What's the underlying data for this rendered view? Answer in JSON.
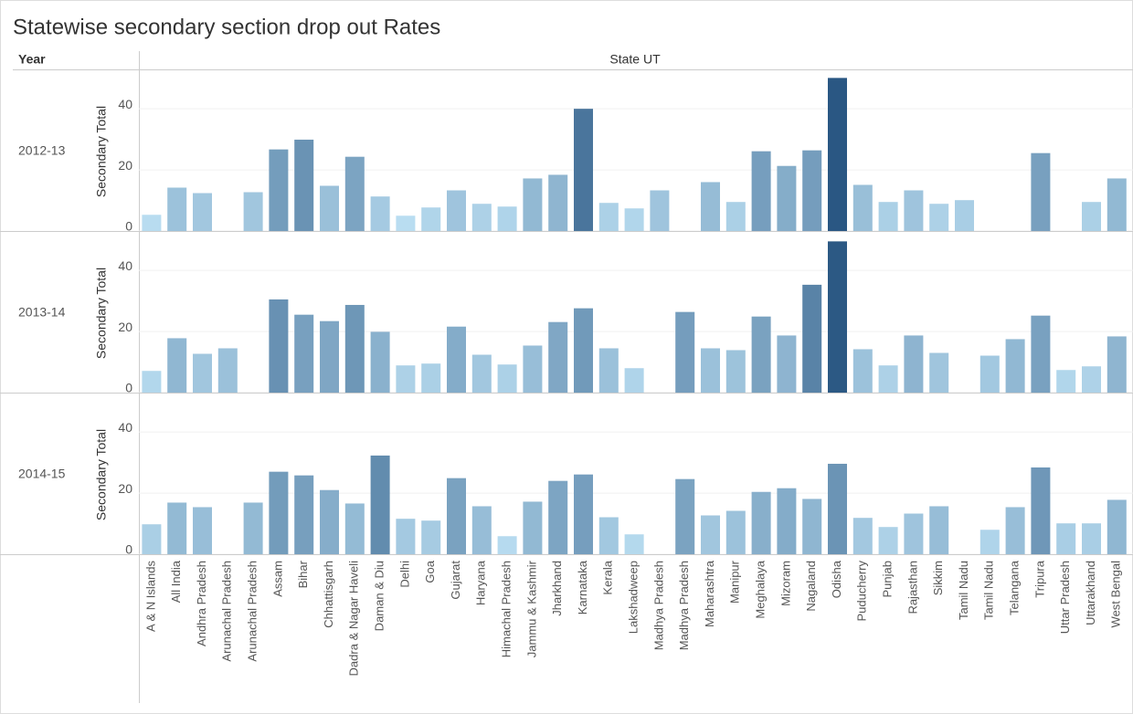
{
  "title": "Statewise secondary section drop out Rates",
  "row_header": "Year",
  "column_header": "State UT",
  "chart_data": {
    "type": "bar",
    "y_label": "Secondary Total",
    "categories": [
      "A & N Islands",
      "All India",
      "Andhra Pradesh",
      "Arunachal  Pradesh",
      "Arunachal Pradesh",
      "Assam",
      "Bihar",
      "Chhattisgarh",
      "Dadra & Nagar Haveli",
      "Daman & Diu",
      "Delhi",
      "Goa",
      "Gujarat",
      "Haryana",
      "Himachal Pradesh",
      "Jammu & Kashmir",
      "Jharkhand",
      "Karnataka",
      "Kerala",
      "Lakshadweep",
      "Madhya  Pradesh",
      "Madhya Pradesh",
      "Maharashtra",
      "Manipur",
      "Meghalaya",
      "Mizoram",
      "Nagaland",
      "Odisha",
      "Puducherry",
      "Punjab",
      "Rajasthan",
      "Sikkim",
      "Tamil  Nadu",
      "Tamil Nadu",
      "Telangana",
      "Tripura",
      "Uttar Pradesh",
      "Uttarakhand",
      "West Bengal"
    ],
    "rows": [
      {
        "name": "2012-13",
        "values": [
          5.3,
          14.2,
          12.4,
          null,
          12.7,
          26.7,
          29.9,
          14.8,
          24.3,
          11.3,
          5.0,
          7.7,
          13.3,
          8.9,
          8.0,
          17.2,
          18.4,
          40.0,
          9.2,
          7.4,
          13.3,
          null,
          16.0,
          9.5,
          26.1,
          21.3,
          26.4,
          50.1,
          15.1,
          9.5,
          13.3,
          8.9,
          10.1,
          null,
          null,
          25.5,
          null,
          9.5,
          17.2
        ]
      },
      {
        "name": "2013-14",
        "values": [
          7.1,
          17.8,
          12.7,
          14.5,
          null,
          30.5,
          25.5,
          23.4,
          28.7,
          19.9,
          8.9,
          9.5,
          21.6,
          12.4,
          9.2,
          15.4,
          23.1,
          27.6,
          14.5,
          8.0,
          null,
          26.4,
          14.5,
          13.9,
          24.9,
          18.7,
          35.3,
          49.5,
          14.2,
          8.9,
          18.7,
          13.0,
          null,
          12.1,
          17.5,
          25.2,
          7.4,
          8.6,
          18.4
        ]
      },
      {
        "name": "2014-15",
        "values": [
          9.8,
          16.9,
          15.4,
          null,
          16.9,
          27.0,
          25.8,
          21.0,
          16.6,
          32.3,
          11.6,
          11.0,
          24.9,
          15.7,
          5.9,
          17.2,
          24.0,
          26.1,
          12.1,
          6.5,
          null,
          24.6,
          12.7,
          14.2,
          20.4,
          21.6,
          18.1,
          29.6,
          11.9,
          8.9,
          13.3,
          15.7,
          null,
          8.0,
          15.4,
          28.4,
          10.1,
          10.1,
          17.8
        ]
      }
    ],
    "ylim": [
      0,
      52
    ],
    "yticks": [
      0,
      20,
      40
    ],
    "grid": true,
    "color_range": [
      "#b9ddf1",
      "#2a5783"
    ]
  }
}
